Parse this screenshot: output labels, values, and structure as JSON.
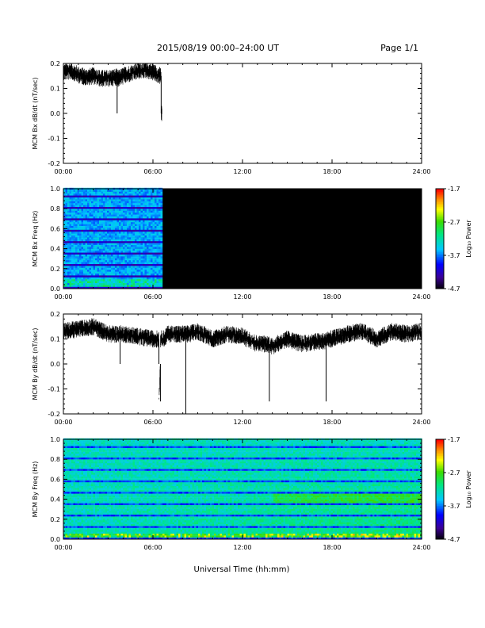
{
  "header": {
    "title": "2015/08/19  00:00–24:00 UT",
    "page": "Page 1/1"
  },
  "x_axis_label": "Universal Time (hh:mm)",
  "colors": {
    "axis": "#000000",
    "background_black": "#000000",
    "trace": "#000000"
  },
  "chart_data": [
    {
      "type": "line",
      "ylabel": "MCM Bx dB/dt (nT/sec)",
      "xlim": [
        0,
        24
      ],
      "ylim": [
        -0.2,
        0.2
      ],
      "x_ticks": [
        "00:00",
        "06:00",
        "12:00",
        "18:00",
        "24:00"
      ],
      "y_ticks": [
        "-0.2",
        "-0.1",
        "0.0",
        "0.1",
        "0.2"
      ],
      "series": [
        {
          "x": [
            0.0,
            0.5,
            1.0,
            1.5,
            2.0,
            2.5,
            3.0,
            3.5,
            3.6,
            3.7,
            4.0,
            4.5,
            5.0,
            5.5,
            6.0,
            6.5,
            6.55,
            6.6,
            6.62
          ],
          "y": [
            0.165,
            0.17,
            0.155,
            0.145,
            0.15,
            0.14,
            0.14,
            0.145,
            0.0,
            0.14,
            0.15,
            0.16,
            0.17,
            0.175,
            0.165,
            0.15,
            0.0,
            0.0,
            0.0
          ]
        }
      ],
      "data_end_hour": 6.6
    },
    {
      "type": "heatmap",
      "ylabel": "MCM Bx Freq (Hz)",
      "xlim": [
        0,
        24
      ],
      "ylim": [
        0.0,
        1.0
      ],
      "x_ticks": [
        "00:00",
        "06:00",
        "12:00",
        "18:00",
        "24:00"
      ],
      "y_ticks": [
        "0.0",
        "0.2",
        "0.4",
        "0.6",
        "0.8",
        "1.0"
      ],
      "data_end_hour": 6.6,
      "colorbar": {
        "label": "Log₁₀ Power",
        "ticks": [
          "-1.7",
          "-2.7",
          "-3.7",
          "-4.7"
        ],
        "range": [
          -4.7,
          -1.7
        ]
      }
    },
    {
      "type": "line",
      "ylabel": "MCM By dB/dt (nT/sec)",
      "xlim": [
        0,
        24
      ],
      "ylim": [
        -0.2,
        0.2
      ],
      "x_ticks": [
        "00:00",
        "06:00",
        "12:00",
        "18:00",
        "24:00"
      ],
      "y_ticks": [
        "-0.2",
        "-0.1",
        "0.0",
        "0.1",
        "0.2"
      ],
      "series": [
        {
          "x": [
            0.0,
            1.0,
            2.0,
            3.0,
            3.8,
            4.0,
            5.0,
            6.0,
            6.4,
            6.5,
            6.7,
            7.0,
            8.0,
            8.2,
            8.4,
            9.0,
            10.0,
            11.0,
            12.0,
            13.0,
            13.8,
            14.0,
            15.0,
            16.0,
            17.0,
            17.6,
            18.0,
            19.0,
            20.0,
            21.0,
            22.0,
            23.0,
            24.0
          ],
          "y": [
            0.13,
            0.14,
            0.15,
            0.12,
            0.0,
            0.12,
            0.11,
            0.1,
            0.0,
            -0.15,
            0.1,
            0.12,
            0.12,
            -0.2,
            0.12,
            0.13,
            0.1,
            0.12,
            0.11,
            0.08,
            -0.15,
            0.07,
            0.1,
            0.08,
            0.09,
            -0.15,
            0.1,
            0.12,
            0.13,
            0.1,
            0.13,
            0.12,
            0.13
          ]
        }
      ]
    },
    {
      "type": "heatmap",
      "ylabel": "MCM By Freq (Hz)",
      "xlim": [
        0,
        24
      ],
      "ylim": [
        0.0,
        1.0
      ],
      "x_ticks": [
        "00:00",
        "06:00",
        "12:00",
        "18:00",
        "24:00"
      ],
      "y_ticks": [
        "0.0",
        "0.2",
        "0.4",
        "0.6",
        "0.8",
        "1.0"
      ],
      "data_end_hour": 24,
      "colorbar": {
        "label": "Log₁₀ Power",
        "ticks": [
          "-1.7",
          "-2.7",
          "-3.7",
          "-4.7"
        ],
        "range": [
          -4.7,
          -1.7
        ]
      }
    }
  ]
}
